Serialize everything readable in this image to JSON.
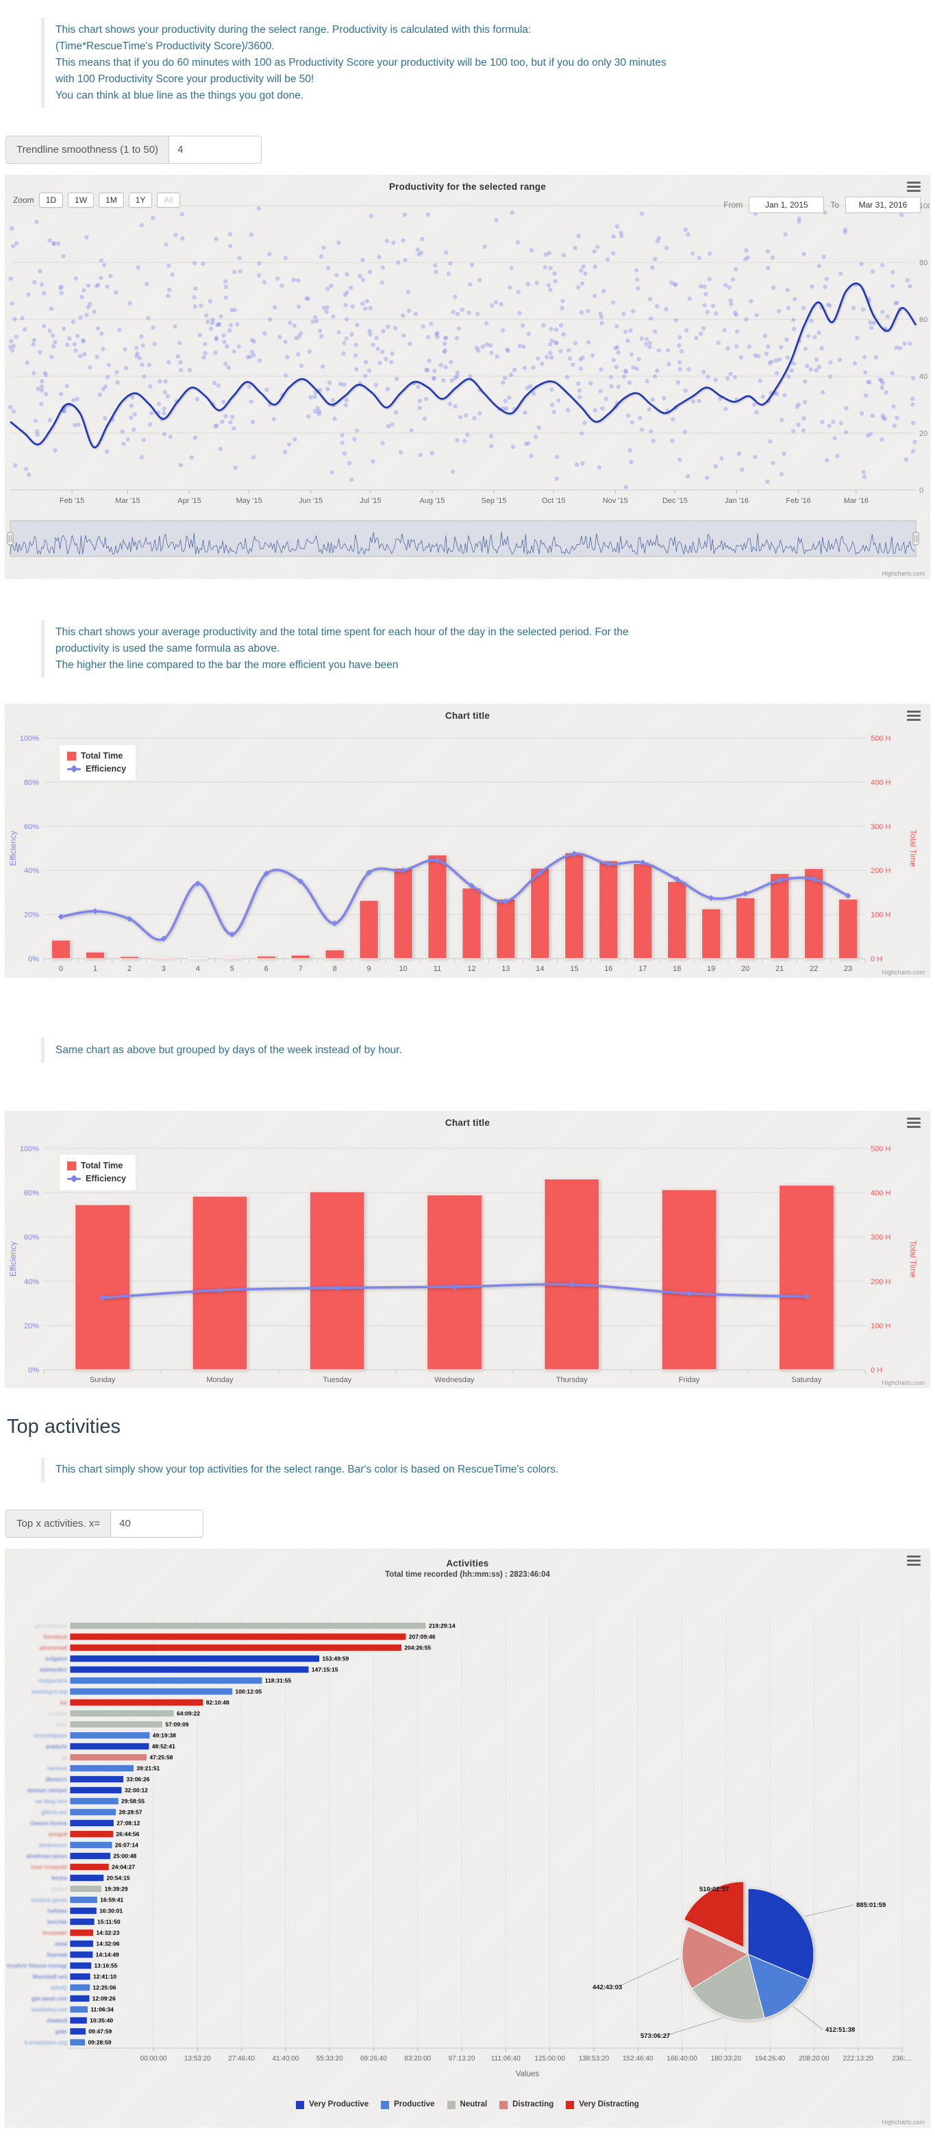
{
  "credits": "Highcharts.com",
  "heading_top_activities": "Top activities",
  "notes": {
    "intro": [
      "This chart shows your productivity during the select range. Productivity is calculated with this formula:",
      "(Time*RescueTime's Productivity Score)/3600.",
      "This means that if you do 60 minutes with 100 as Productivity Score your productivity will be 100 too, but if you do only 30 minutes",
      "with 100 Productivity Score your productivity will be 50!",
      "You can think at blue line as the things you got done."
    ],
    "hourly": [
      "This chart shows your average productivity and the total time spent for each hour of the day in the selected period. For the",
      "productivity is used the same formula as above.",
      "The higher the line compared to the bar the more efficient you have been"
    ],
    "weekly": "Same chart as above but grouped by days of the week instead of by hour.",
    "activities": "This chart simply show your top activities for the select range. Bar's color is based on RescueTime's colors."
  },
  "controls": {
    "trendline": {
      "label": "Trendline smoothness (1 to 50)",
      "value": "4"
    },
    "topx": {
      "label": "Top x activities. x=",
      "value": "40"
    }
  },
  "colors": {
    "bar_red": "#f45b5b",
    "line_purple": "#8085e9",
    "trend_blue": "#2037b1",
    "scatter_dot": "#8085e9",
    "vp": "#1c3fc2",
    "p": "#4d7fd8",
    "n": "#b4bcb4",
    "d": "#d8837d",
    "vd": "#d6281c"
  },
  "chart_data": [
    {
      "type": "scatter",
      "title": "Productivity for the selected range",
      "zoom_label": "Zoom",
      "zoom_buttons": [
        "1D",
        "1W",
        "1M",
        "1Y",
        "All"
      ],
      "zoom_disabled": "All",
      "from_label": "From",
      "from_value": "Jan 1, 2015",
      "to_label": "To",
      "to_value": "Mar 31, 2016",
      "x_tick_labels": [
        "Feb '15",
        "Mar '15",
        "Apr '15",
        "May '15",
        "Jun '15",
        "Jul '15",
        "Aug '15",
        "Sep '15",
        "Oct '15",
        "Nov '15",
        "Dec '15",
        "Jan '16",
        "Feb '16",
        "Mar '16"
      ],
      "x_tick_days": [
        31,
        59,
        90,
        120,
        151,
        181,
        212,
        243,
        273,
        304,
        334,
        365,
        396,
        425
      ],
      "range_days": 455,
      "y_tick_labels": [
        "0",
        "20",
        "40",
        "60",
        "80",
        "100"
      ],
      "ylim": [
        0,
        100
      ],
      "scatter": {
        "points": 880,
        "note": "unlabeled daily productivity samples 0-100"
      },
      "trendline_values": [
        24,
        20,
        16,
        22,
        30,
        27,
        15,
        23,
        31,
        34,
        30,
        25,
        31,
        36,
        33,
        28,
        33,
        38,
        34,
        30,
        36,
        39,
        35,
        30,
        33,
        37,
        34,
        29,
        34,
        38,
        36,
        32,
        36,
        39,
        34,
        29,
        27,
        33,
        37,
        38,
        34,
        29,
        24,
        27,
        32,
        34,
        30,
        27,
        30,
        33,
        36,
        33,
        31,
        33,
        30,
        36,
        45,
        58,
        66,
        59,
        70,
        72,
        61,
        56,
        64,
        58
      ],
      "navigator": true
    },
    {
      "type": "bar",
      "title": "Chart title",
      "categories": [
        "0",
        "1",
        "2",
        "3",
        "4",
        "5",
        "6",
        "7",
        "8",
        "9",
        "10",
        "11",
        "12",
        "13",
        "14",
        "15",
        "16",
        "17",
        "18",
        "19",
        "20",
        "21",
        "22",
        "23"
      ],
      "series": [
        {
          "name": "Total Time",
          "kind": "column",
          "axis": "right",
          "unit": "H",
          "values": [
            42,
            15,
            5,
            2,
            1,
            2,
            6,
            8,
            20,
            132,
            205,
            235,
            160,
            135,
            205,
            240,
            222,
            215,
            175,
            113,
            138,
            193,
            204,
            135
          ]
        },
        {
          "name": "Efficiency",
          "kind": "spline",
          "axis": "left",
          "unit": "%",
          "values": [
            19,
            21.5,
            18,
            9,
            34,
            11,
            38.5,
            35,
            16,
            39,
            40,
            44.5,
            33,
            26,
            39,
            47.5,
            43,
            43.5,
            36,
            27.5,
            29.5,
            35.5,
            36,
            28.5
          ]
        }
      ],
      "yaxis_left": {
        "title": "Efficiency",
        "labels": [
          "0%",
          "20%",
          "40%",
          "60%",
          "80%",
          "100%"
        ],
        "max": 100
      },
      "yaxis_right": {
        "title": "Total Time",
        "labels": [
          "0 H",
          "100 H",
          "200 H",
          "300 H",
          "400 H",
          "500 H"
        ],
        "max": 500
      }
    },
    {
      "type": "bar",
      "title": "Chart title",
      "categories": [
        "Sunday",
        "Monday",
        "Tuesday",
        "Wednesday",
        "Thursday",
        "Friday",
        "Saturday"
      ],
      "series": [
        {
          "name": "Total Time",
          "kind": "column",
          "axis": "right",
          "unit": "H",
          "values": [
            373,
            392,
            402,
            395,
            431,
            407,
            417
          ]
        },
        {
          "name": "Efficiency",
          "kind": "spline",
          "axis": "left",
          "unit": "%",
          "values": [
            32.5,
            36,
            37,
            37.5,
            38.5,
            34.5,
            33
          ]
        }
      ],
      "yaxis_left": {
        "title": "Efficiency",
        "labels": [
          "0%",
          "20%",
          "40%",
          "60%",
          "80%",
          "100%"
        ],
        "max": 100
      },
      "yaxis_right": {
        "title": "Total Time",
        "labels": [
          "0 H",
          "100 H",
          "200 H",
          "300 H",
          "400 H",
          "500 H"
        ],
        "max": 500
      }
    },
    {
      "type": "bar",
      "title": "Activities",
      "subtitle": "Total time recorded (hh:mm:ss) : 2823:46:04",
      "categories_masked": true,
      "xaxis": {
        "title": "Values",
        "labels": [
          "00:00:00",
          "13:53:20",
          "27:46:40",
          "41:40:00",
          "55:33:20",
          "69:26:40",
          "83:20:00",
          "97:13:20",
          "111:06:40",
          "125:00:00",
          "138:53:20",
          "152:46:40",
          "166:40:00",
          "180:33:20",
          "194:26:40",
          "208:20:00",
          "222:13:20",
          "236:…"
        ]
      },
      "bars": [
        {
          "time": "219:29:14",
          "seconds": 790154,
          "cat": "n",
          "mask": "gthumbwcsm"
        },
        {
          "time": "207:09:46",
          "seconds": 745786,
          "cat": "vd",
          "mask": "frecebsok"
        },
        {
          "time": "204:26:55",
          "seconds": 736015,
          "cat": "vd",
          "mask": "adceramwlt"
        },
        {
          "time": "153:49:59",
          "seconds": 553799,
          "cat": "vp",
          "mask": "ecllgsevr"
        },
        {
          "time": "147:15:15",
          "seconds": 530115,
          "cat": "vp",
          "mask": "itstimeclkvr"
        },
        {
          "time": "118:31:55",
          "seconds": 426715,
          "cat": "p",
          "mask": "mailgwclent"
        },
        {
          "time": "100:12:05",
          "seconds": 360725,
          "cat": "p",
          "mask": "wwtelegrm.org"
        },
        {
          "time": "82:10:48",
          "seconds": 295848,
          "cat": "vd",
          "mask": "tsp"
        },
        {
          "time": "64:09:22",
          "seconds": 230962,
          "cat": "n",
          "mask": "yvutvbe"
        },
        {
          "time": "57:09:09",
          "seconds": 205749,
          "cat": "n",
          "mask": "wlan"
        },
        {
          "time": "49:19:38",
          "seconds": 177578,
          "cat": "p",
          "mask": "vlcmediaplyer"
        },
        {
          "time": "48:52:41",
          "seconds": 175961,
          "cat": "vp",
          "mask": "praducts"
        },
        {
          "time": "47:25:58",
          "seconds": 170758,
          "cat": "d",
          "mask": "cs"
        },
        {
          "time": "39:21:51",
          "seconds": 141711,
          "cat": "p",
          "mask": "hwrlwvb"
        },
        {
          "time": "33:06:26",
          "seconds": 119186,
          "cat": "vp",
          "mask": "dlsnwrch"
        },
        {
          "time": "32:00:12",
          "seconds": 115212,
          "cat": "vp",
          "mask": "stmewrt.campwr"
        },
        {
          "time": "29:58:55",
          "seconds": 107935,
          "cat": "p",
          "mask": "wa blwg hmv"
        },
        {
          "time": "28:28:57",
          "seconds": 102537,
          "cat": "p",
          "mask": "gilthvb wrc"
        },
        {
          "time": "27:08:12",
          "seconds": 97692,
          "cat": "vp",
          "mask": "Geanvt rhcwne"
        },
        {
          "time": "26:44:56",
          "seconds": 96296,
          "cat": "vd",
          "mask": "asmgvlt"
        },
        {
          "time": "26:07:14",
          "seconds": 94034,
          "cat": "p",
          "mask": "wlndrwsvnc"
        },
        {
          "time": "25:00:48",
          "seconds": 90048,
          "cat": "vp",
          "mask": "ahrelmsw.camvn"
        },
        {
          "time": "24:04:27",
          "seconds": 86667,
          "cat": "vd",
          "mask": "lcwd rmvepwtd"
        },
        {
          "time": "20:54:15",
          "seconds": 75255,
          "cat": "vp",
          "mask": "fwctrw"
        },
        {
          "time": "19:39:29",
          "seconds": 70769,
          "cat": "n",
          "mask": "pwisvf"
        },
        {
          "time": "16:59:41",
          "seconds": 61181,
          "cat": "p",
          "mask": "maskvw genwr"
        },
        {
          "time": "16:30:01",
          "seconds": 59401,
          "cat": "vp",
          "mask": "hwfstwv"
        },
        {
          "time": "15:11:50",
          "seconds": 54710,
          "cat": "vp",
          "mask": "lwnchwr"
        },
        {
          "time": "14:32:23",
          "seconds": 52343,
          "cat": "vd",
          "mask": "tmvwewer"
        },
        {
          "time": "14:32:06",
          "seconds": 52326,
          "cat": "vp",
          "mask": "vwsd"
        },
        {
          "time": "14:14:49",
          "seconds": 51289,
          "cat": "vp",
          "mask": "fnwmwb"
        },
        {
          "time": "13:16:55",
          "seconds": 47815,
          "cat": "vp",
          "mask": "lncwhmr frtwvne mvnwgr"
        },
        {
          "time": "12:41:10",
          "seconds": 45670,
          "cat": "vp",
          "mask": "Mwcrtswft wrd"
        },
        {
          "time": "12:25:06",
          "seconds": 44706,
          "cat": "p",
          "mask": "swtwfy"
        },
        {
          "time": "12:09:26",
          "seconds": 43766,
          "cat": "vp",
          "mask": "gwt.stwsh.cvm"
        },
        {
          "time": "11:06:34",
          "seconds": 39994,
          "cat": "p",
          "mask": "wwrkfvlwy.cvm"
        },
        {
          "time": "10:35:40",
          "seconds": 38140,
          "cat": "vp",
          "mask": "shwtwvll"
        },
        {
          "time": "09:47:59",
          "seconds": 35279,
          "cat": "vp",
          "mask": "gwbr"
        },
        {
          "time": "09:28:59",
          "seconds": 34139,
          "cat": "p",
          "mask": "iLwvwpdwtes.wrg"
        }
      ],
      "pie": [
        {
          "time": "885:01:59",
          "seconds": 3186119,
          "cat": "vp",
          "lx": 1243,
          "ly": 523
        },
        {
          "time": "412:51:38",
          "seconds": 1486298,
          "cat": "p",
          "lx": 1198,
          "ly": 705
        },
        {
          "time": "573:06:27",
          "seconds": 2063187,
          "cat": "n",
          "lx": 928,
          "ly": 714
        },
        {
          "time": "442:43:03",
          "seconds": 1593783,
          "cat": "d",
          "lx": 858,
          "ly": 643
        },
        {
          "time": "510:02:57",
          "seconds": 1836177,
          "cat": "vd",
          "lx": 1014,
          "ly": 500,
          "offset": true
        }
      ],
      "legend": [
        {
          "label": "Very Productive",
          "cat": "vp"
        },
        {
          "label": "Productive",
          "cat": "p"
        },
        {
          "label": "Neutral",
          "cat": "n"
        },
        {
          "label": "Distracting",
          "cat": "d"
        },
        {
          "label": "Very Distracting",
          "cat": "vd"
        }
      ]
    }
  ]
}
